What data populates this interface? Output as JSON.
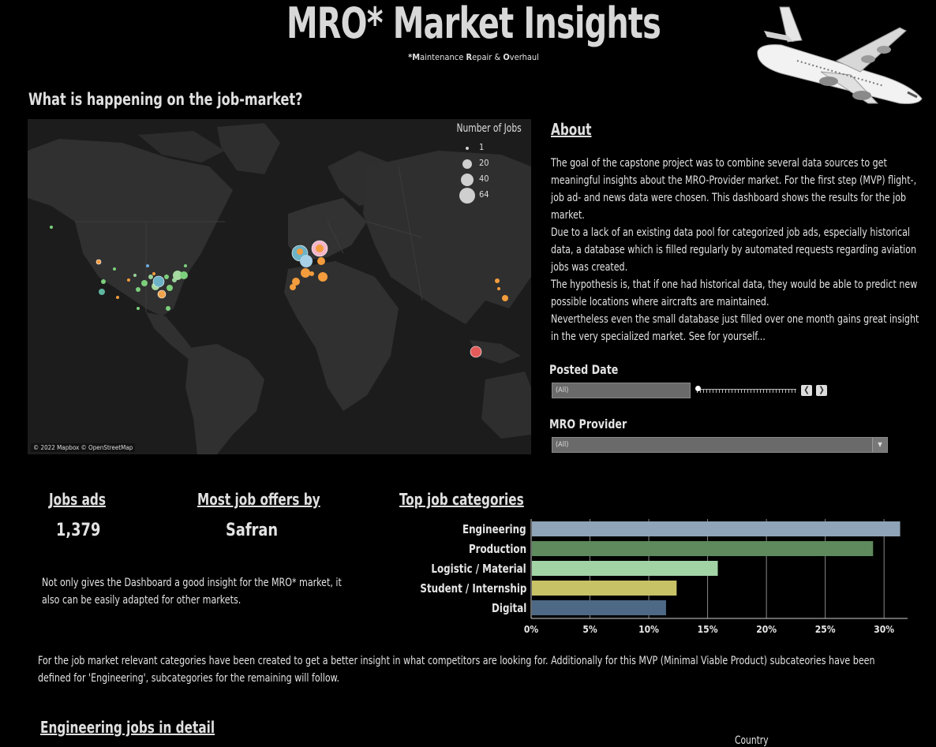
{
  "header": {
    "title": "MRO* Market Insights",
    "subtitle_prefix_1": "*M",
    "subtitle_rest_1": "aintenance ",
    "subtitle_prefix_2": "R",
    "subtitle_rest_2": "epair & ",
    "subtitle_prefix_3": "O",
    "subtitle_rest_3": "verhaul"
  },
  "map_section": {
    "heading": "What is happening on the job-market?",
    "legend_title": "Number of Jobs",
    "legend_items": [
      "1",
      "20",
      "40",
      "64"
    ],
    "attribution": "© 2022 Mapbox © OpenStreetMap"
  },
  "about": {
    "heading": "About",
    "paragraphs": [
      "The goal of the capstone project was to combine several data sources to get meaningful insights about the MRO-Provider market. For the first step (MVP) flight-, job ad- and news data were chosen.  This dashboard shows the results for the job market.",
      "Due to a lack of an existing data pool for categorized job ads, especially historical data, a database which is filled regularly by automated requests regarding aviation jobs was created.",
      "The hypothesis is, that if one had historical data, they would be able to predict new possible locations where aircrafts are maintained.",
      "Nevertheless even the small database just filled over one month gains great insight in the very specialized market. See for yourself..."
    ]
  },
  "filters": {
    "posted_date_label": "Posted Date",
    "posted_date_value": "(All)",
    "slider_position": 0,
    "prev_icon": "chevron-left-icon",
    "next_icon": "chevron-right-icon",
    "mro_provider_label": "MRO Provider",
    "mro_provider_value": "(All)"
  },
  "kpis": {
    "jobs_ads_label": "Jobs ads",
    "jobs_ads_value": "1,379",
    "most_offers_label": "Most job offers by",
    "most_offers_value": "Safran"
  },
  "note_text": "Not only gives the Dashboard a good insight for the MRO* market, it also can be easily adapted for other markets.",
  "categories_text": "For the job market relevant categories have been created to get a better insight in what competitors are looking for. Additionally for this MVP (Minimal Viable Product) subcateories have been defined for 'Engineering', subcategories for the remaining will follow.",
  "engineering": {
    "heading": "Engineering jobs in detail",
    "country_label": "Country"
  },
  "colors": {
    "background": "#000000",
    "engineering": "#8fa4b8",
    "production": "#5e8a5e",
    "logistic": "#a2d3a5",
    "student": "#c7c266",
    "digital": "#4e6985"
  },
  "chart_data": {
    "type": "bar",
    "orientation": "horizontal",
    "title": "Top job categories",
    "categories": [
      "Engineering",
      "Production",
      "Logistic / Material",
      "Student / Internship",
      "Digital"
    ],
    "values": [
      31.3,
      29.0,
      15.8,
      12.3,
      11.4
    ],
    "unit": "%",
    "xlim": [
      0,
      32
    ],
    "xticks": [
      "0%",
      "5%",
      "10%",
      "15%",
      "20%",
      "25%",
      "30%"
    ],
    "grid": true
  }
}
